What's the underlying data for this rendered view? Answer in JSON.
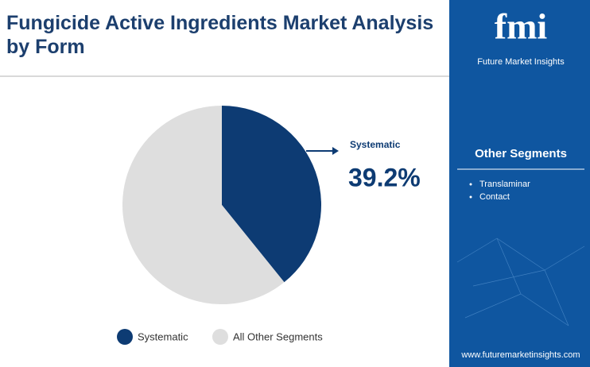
{
  "chart_data": {
    "type": "pie",
    "title": "Fungicide Active Ingredients Market Analysis by Form",
    "categories": [
      "Systematic",
      "All Other Segments"
    ],
    "values": [
      39.2,
      60.8
    ],
    "value_labels": [
      "39.2%",
      null
    ],
    "colors": [
      "#0d3b73",
      "#dedede"
    ]
  },
  "sidebar": {
    "logo": "fmi",
    "brand": "Future Market Insights",
    "heading": "Other Segments",
    "items": [
      "Translaminar",
      "Contact"
    ],
    "url": "www.futuremarketinsights.com"
  }
}
